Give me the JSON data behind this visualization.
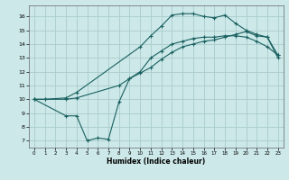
{
  "xlabel": "Humidex (Indice chaleur)",
  "bg_color": "#cce8e8",
  "grid_color": "#aacccc",
  "line_color": "#1a6060",
  "xlim": [
    -0.5,
    23.5
  ],
  "ylim": [
    6.5,
    16.8
  ],
  "xticks": [
    0,
    1,
    2,
    3,
    4,
    5,
    6,
    7,
    8,
    9,
    10,
    11,
    12,
    13,
    14,
    15,
    16,
    17,
    18,
    19,
    20,
    21,
    22,
    23
  ],
  "yticks": [
    7,
    8,
    9,
    10,
    11,
    12,
    13,
    14,
    15,
    16
  ],
  "curve1_x": [
    0,
    1,
    3,
    4,
    10,
    11,
    12,
    13,
    14,
    15,
    16,
    17,
    18,
    19,
    20,
    21,
    22,
    23
  ],
  "curve1_y": [
    10,
    10,
    10.1,
    10.5,
    13.8,
    14.6,
    15.3,
    16.1,
    16.2,
    16.2,
    16.0,
    15.9,
    16.1,
    15.5,
    15.0,
    14.7,
    14.5,
    13.2
  ],
  "curve2_x": [
    0,
    1,
    3,
    4,
    8,
    9,
    10,
    11,
    12,
    13,
    14,
    15,
    16,
    17,
    18,
    19,
    20,
    21,
    22,
    23
  ],
  "curve2_y": [
    10,
    10,
    10.0,
    10.1,
    11.0,
    11.5,
    11.9,
    12.3,
    12.9,
    13.4,
    13.8,
    14.0,
    14.2,
    14.3,
    14.5,
    14.7,
    14.9,
    14.6,
    14.5,
    13.0
  ],
  "curve3_x": [
    0,
    3,
    4,
    5,
    6,
    7,
    8,
    9,
    10,
    11,
    12,
    13,
    14,
    15,
    16,
    17,
    18,
    19,
    20,
    21,
    22,
    23
  ],
  "curve3_y": [
    10,
    8.8,
    8.8,
    7.0,
    7.2,
    7.1,
    9.8,
    11.5,
    12.0,
    13.0,
    13.5,
    14.0,
    14.2,
    14.4,
    14.5,
    14.5,
    14.6,
    14.6,
    14.5,
    14.2,
    13.8,
    13.2
  ]
}
